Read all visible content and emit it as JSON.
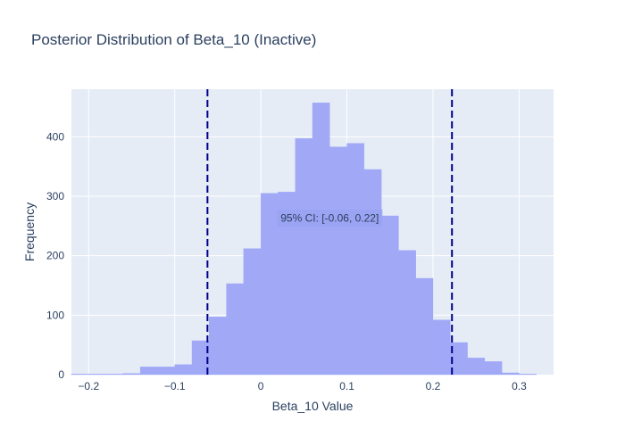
{
  "chart_data": {
    "type": "bar",
    "title": "Posterior Distribution of Beta_10 (Inactive)",
    "xlabel": "Beta_10 Value",
    "ylabel": "Frequency",
    "xlim": [
      -0.22,
      0.34
    ],
    "ylim": [
      0,
      480
    ],
    "x_ticks": [
      -0.2,
      -0.1,
      0,
      0.1,
      0.2,
      0.3
    ],
    "x_tick_labels": [
      "−0.2",
      "−0.1",
      "0",
      "0.1",
      "0.2",
      "0.3"
    ],
    "y_ticks": [
      0,
      100,
      200,
      300,
      400
    ],
    "y_tick_labels": [
      "0",
      "100",
      "200",
      "300",
      "400"
    ],
    "bin_width": 0.02,
    "bins": [
      {
        "x0": -0.22,
        "count": 1
      },
      {
        "x0": -0.2,
        "count": 1
      },
      {
        "x0": -0.18,
        "count": 1
      },
      {
        "x0": -0.16,
        "count": 2
      },
      {
        "x0": -0.14,
        "count": 13
      },
      {
        "x0": -0.12,
        "count": 13
      },
      {
        "x0": -0.1,
        "count": 17
      },
      {
        "x0": -0.08,
        "count": 57
      },
      {
        "x0": -0.06,
        "count": 97
      },
      {
        "x0": -0.04,
        "count": 153
      },
      {
        "x0": -0.02,
        "count": 212
      },
      {
        "x0": 0.0,
        "count": 305
      },
      {
        "x0": 0.02,
        "count": 307
      },
      {
        "x0": 0.04,
        "count": 397
      },
      {
        "x0": 0.06,
        "count": 457
      },
      {
        "x0": 0.08,
        "count": 383
      },
      {
        "x0": 0.1,
        "count": 389
      },
      {
        "x0": 0.12,
        "count": 345
      },
      {
        "x0": 0.14,
        "count": 267
      },
      {
        "x0": 0.16,
        "count": 209
      },
      {
        "x0": 0.18,
        "count": 162
      },
      {
        "x0": 0.2,
        "count": 92
      },
      {
        "x0": 0.22,
        "count": 54
      },
      {
        "x0": 0.24,
        "count": 28
      },
      {
        "x0": 0.26,
        "count": 22
      },
      {
        "x0": 0.28,
        "count": 3
      },
      {
        "x0": 0.3,
        "count": 1
      }
    ],
    "ci_lines": [
      -0.062,
      0.222
    ],
    "annotation": {
      "text": "95% CI: [-0.06, 0.22]",
      "x": 0.08,
      "y": 263
    },
    "grid": true,
    "colors": {
      "bar": "#a1a9f7",
      "plot_bg": "#e5ecf6",
      "grid": "#ffffff",
      "ci_line": "#00008b",
      "text": "#2a3f5f",
      "annotation_bg": "#9aa3f2"
    }
  }
}
